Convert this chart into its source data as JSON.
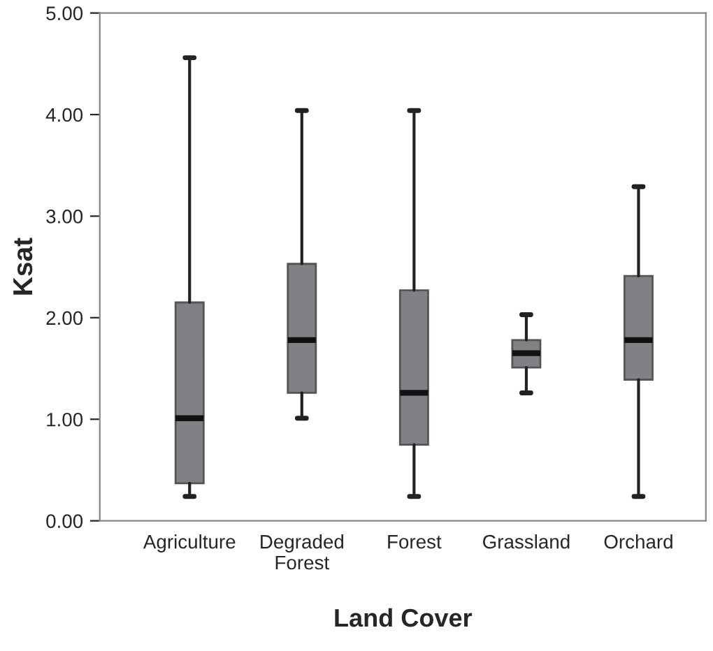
{
  "chart_data": {
    "type": "box",
    "xlabel": "Land Cover",
    "ylabel": "Ksat",
    "categories": [
      "Agriculture",
      "Degraded\nForest",
      "Forest",
      "Grassland",
      "Orchard"
    ],
    "boxes": [
      {
        "low": 0.24,
        "q1": 0.37,
        "median": 1.01,
        "q3": 2.15,
        "high": 4.56
      },
      {
        "low": 1.01,
        "q1": 1.26,
        "median": 1.78,
        "q3": 2.53,
        "high": 4.04
      },
      {
        "low": 0.24,
        "q1": 0.75,
        "median": 1.26,
        "q3": 2.27,
        "high": 4.04
      },
      {
        "low": 1.26,
        "q1": 1.51,
        "median": 1.65,
        "q3": 1.78,
        "high": 2.03
      },
      {
        "low": 0.24,
        "q1": 1.39,
        "median": 1.78,
        "q3": 2.41,
        "high": 3.29
      }
    ],
    "color": "#808185",
    "ylim": [
      0,
      5
    ],
    "yticks": [
      {
        "value": 0,
        "label": "0.00"
      },
      {
        "value": 1,
        "label": "1.00"
      },
      {
        "value": 2,
        "label": "2.00"
      },
      {
        "value": 3,
        "label": "3.00"
      },
      {
        "value": 4,
        "label": "4.00"
      },
      {
        "value": 5,
        "label": "5.00"
      }
    ],
    "grid": false
  }
}
